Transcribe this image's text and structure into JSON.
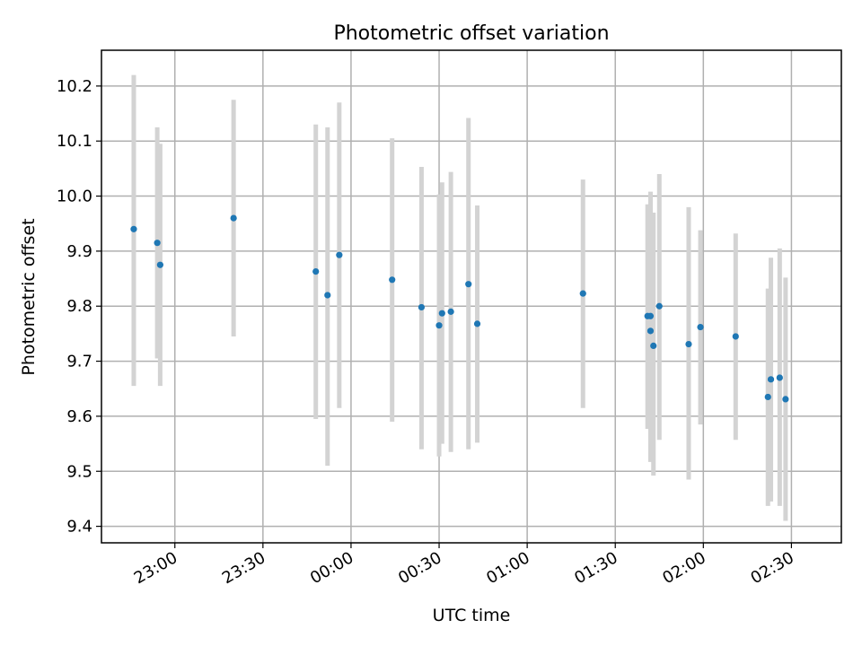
{
  "chart_data": {
    "type": "scatter",
    "title": "Photometric offset variation",
    "xlabel": "UTC time",
    "ylabel": "Photometric offset",
    "grid": true,
    "xlim": [
      "22:35",
      "02:47"
    ],
    "ylim": [
      9.37,
      10.265
    ],
    "x_ticks": [
      "23:00",
      "23:30",
      "00:00",
      "00:30",
      "01:00",
      "01:30",
      "02:00",
      "02:30"
    ],
    "y_ticks": [
      "9.4",
      "9.5",
      "9.6",
      "9.7",
      "9.8",
      "9.9",
      "10.0",
      "10.1",
      "10.2"
    ],
    "error_bar_color": "#d3d3d3",
    "point_color": "#1f77b4",
    "points": [
      {
        "x": "22:46",
        "y": 9.94,
        "ylo": 9.655,
        "yhi": 10.22
      },
      {
        "x": "22:54",
        "y": 9.915,
        "ylo": 9.705,
        "yhi": 10.125
      },
      {
        "x": "22:55",
        "y": 9.875,
        "ylo": 9.655,
        "yhi": 10.095
      },
      {
        "x": "23:20",
        "y": 9.96,
        "ylo": 9.745,
        "yhi": 10.175
      },
      {
        "x": "23:48",
        "y": 9.863,
        "ylo": 9.595,
        "yhi": 10.13
      },
      {
        "x": "23:52",
        "y": 9.82,
        "ylo": 9.51,
        "yhi": 10.125
      },
      {
        "x": "23:56",
        "y": 9.893,
        "ylo": 9.615,
        "yhi": 10.17
      },
      {
        "x": "00:14",
        "y": 9.848,
        "ylo": 9.59,
        "yhi": 10.105
      },
      {
        "x": "00:24",
        "y": 9.798,
        "ylo": 9.54,
        "yhi": 10.053
      },
      {
        "x": "00:30",
        "y": 9.765,
        "ylo": 9.527,
        "yhi": 10.003
      },
      {
        "x": "00:31",
        "y": 9.787,
        "ylo": 9.55,
        "yhi": 10.025
      },
      {
        "x": "00:34",
        "y": 9.79,
        "ylo": 9.535,
        "yhi": 10.044
      },
      {
        "x": "00:40",
        "y": 9.84,
        "ylo": 9.54,
        "yhi": 10.142
      },
      {
        "x": "00:43",
        "y": 9.768,
        "ylo": 9.552,
        "yhi": 9.983
      },
      {
        "x": "01:19",
        "y": 9.823,
        "ylo": 9.615,
        "yhi": 10.03
      },
      {
        "x": "01:41",
        "y": 9.782,
        "ylo": 9.577,
        "yhi": 9.985
      },
      {
        "x": "01:42",
        "y": 9.755,
        "ylo": 9.517,
        "yhi": 10.003
      },
      {
        "x": "01:42",
        "y": 9.782,
        "ylo": 9.55,
        "yhi": 10.008
      },
      {
        "x": "01:43",
        "y": 9.728,
        "ylo": 9.492,
        "yhi": 9.97
      },
      {
        "x": "01:45",
        "y": 9.8,
        "ylo": 9.557,
        "yhi": 10.04
      },
      {
        "x": "01:55",
        "y": 9.731,
        "ylo": 9.485,
        "yhi": 9.98
      },
      {
        "x": "01:59",
        "y": 9.762,
        "ylo": 9.585,
        "yhi": 9.938
      },
      {
        "x": "02:11",
        "y": 9.745,
        "ylo": 9.557,
        "yhi": 9.932
      },
      {
        "x": "02:22",
        "y": 9.635,
        "ylo": 9.437,
        "yhi": 9.832
      },
      {
        "x": "02:23",
        "y": 9.667,
        "ylo": 9.445,
        "yhi": 9.888
      },
      {
        "x": "02:26",
        "y": 9.67,
        "ylo": 9.437,
        "yhi": 9.905
      },
      {
        "x": "02:28",
        "y": 9.631,
        "ylo": 9.41,
        "yhi": 9.852
      }
    ]
  }
}
